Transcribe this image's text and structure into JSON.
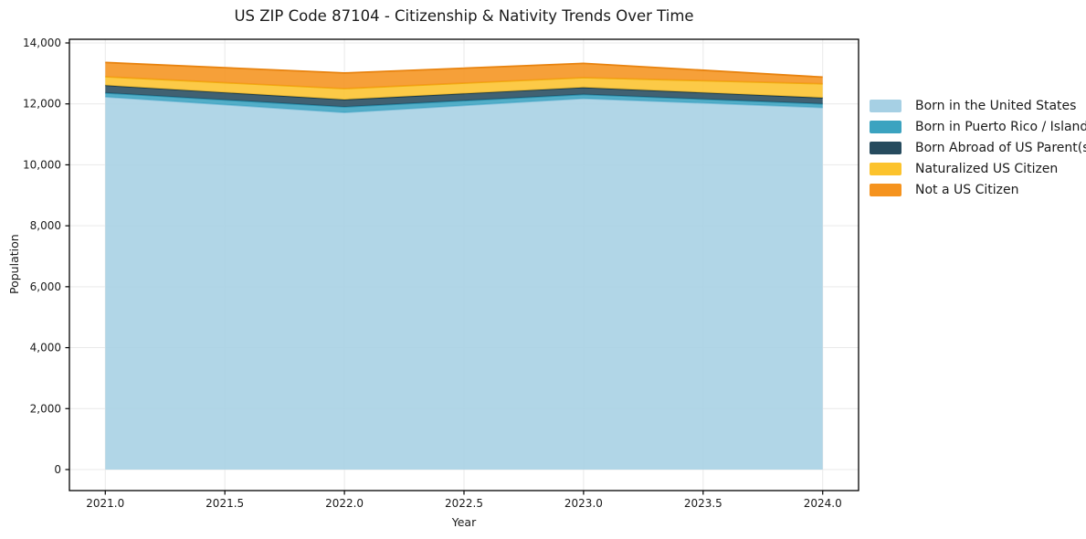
{
  "window": {
    "background": "#ffffff"
  },
  "chart_data": {
    "type": "area",
    "stacked": true,
    "title": "US ZIP Code 87104 - Citizenship & Nativity Trends Over Time",
    "xlabel": "Year",
    "ylabel": "Population",
    "x": [
      2021,
      2022,
      2023,
      2024
    ],
    "series": [
      {
        "name": "Born in the United States",
        "values": [
          12230,
          11720,
          12180,
          11880
        ],
        "fill": "#A6D0E4",
        "edge": "#7FBFD9"
      },
      {
        "name": "Born in Puerto Rico / Islands",
        "values": [
          130,
          180,
          130,
          120
        ],
        "fill": "#3BA3C0",
        "edge": "#2B94B1"
      },
      {
        "name": "Born Abroad of US Parent(s)",
        "values": [
          250,
          240,
          230,
          200
        ],
        "fill": "#264B5E",
        "edge": "#1A3A4A"
      },
      {
        "name": "Naturalized US Citizen",
        "values": [
          280,
          360,
          320,
          460
        ],
        "fill": "#FCC32D",
        "edge": "#F0AE0F"
      },
      {
        "name": "Not a US Citizen",
        "values": [
          470,
          515,
          470,
          220
        ],
        "fill": "#F5931E",
        "edge": "#E8830F"
      }
    ],
    "totals": [
      13360,
      13015,
      13330,
      12880
    ],
    "x_tick_values": [
      2021.0,
      2021.5,
      2022.0,
      2022.5,
      2023.0,
      2023.5,
      2024.0
    ],
    "x_tick_labels": [
      "2021.0",
      "2021.5",
      "2022.0",
      "2022.5",
      "2023.0",
      "2023.5",
      "2024.0"
    ],
    "y_tick_values": [
      0,
      2000,
      4000,
      6000,
      8000,
      10000,
      12000,
      14000
    ],
    "y_tick_labels": [
      "0",
      "2,000",
      "4,000",
      "6,000",
      "8,000",
      "10,000",
      "12,000",
      "14,000"
    ],
    "xlim": [
      2020.85,
      2024.15
    ],
    "ylim": [
      -690,
      14120
    ],
    "grid": true,
    "grid_color": "#e9e9e9",
    "spine_color": "#000000",
    "tick_label_color": "#1a1a1a",
    "legend_position": "right",
    "legend_frame": false
  }
}
